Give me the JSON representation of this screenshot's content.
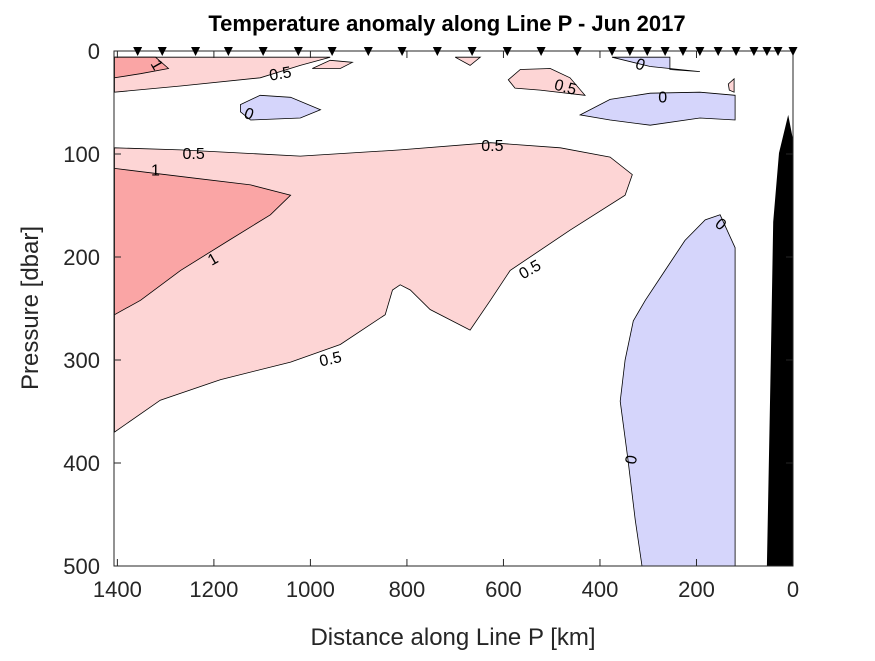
{
  "chart_data": {
    "type": "contour",
    "title": "Temperature anomaly along Line P - Jun 2017",
    "xlabel": "Distance along Line P [km]",
    "ylabel": "Pressure [dbar]",
    "xlim": [
      1407,
      0
    ],
    "ylim": [
      0,
      500
    ],
    "x_reversed": true,
    "y_reversed": true,
    "xticks": [
      1400,
      1200,
      1000,
      800,
      600,
      400,
      200,
      0
    ],
    "yticks": [
      0,
      100,
      200,
      300,
      400,
      500
    ],
    "colors": {
      "pos05": "#fdd5d5",
      "pos1": "#faa5a5",
      "neg": "#d5d5fb",
      "bathymetry": "#000000"
    },
    "stations_km": [
      1358,
      1307,
      1238,
      1170,
      1098,
      1025,
      955,
      880,
      810,
      737,
      665,
      592,
      522,
      447,
      375,
      338,
      302,
      265,
      228,
      193,
      155,
      118,
      81,
      54,
      31,
      0
    ],
    "regions": [
      {
        "level": "pos05",
        "points": [
          [
            1406,
            94
          ],
          [
            1269,
            96
          ],
          [
            1021,
            102
          ],
          [
            814,
            96
          ],
          [
            627,
            89
          ],
          [
            482,
            94
          ],
          [
            379,
            103
          ],
          [
            333,
            120
          ],
          [
            348,
            140
          ],
          [
            462,
            174
          ],
          [
            586,
            213
          ],
          [
            627,
            242
          ],
          [
            669,
            271
          ],
          [
            752,
            251
          ],
          [
            793,
            232
          ],
          [
            814,
            227
          ],
          [
            830,
            232
          ],
          [
            845,
            256
          ],
          [
            938,
            285
          ],
          [
            1041,
            302
          ],
          [
            1186,
            319
          ],
          [
            1311,
            339
          ],
          [
            1406,
            370
          ]
        ]
      },
      {
        "level": "pos1",
        "points": [
          [
            1406,
            114
          ],
          [
            1248,
            123
          ],
          [
            1124,
            130
          ],
          [
            1041,
            140
          ],
          [
            1083,
            159
          ],
          [
            1166,
            183
          ],
          [
            1269,
            213
          ],
          [
            1352,
            242
          ],
          [
            1406,
            256
          ]
        ]
      },
      {
        "level": "pos05",
        "points": [
          [
            1406,
            6
          ],
          [
            959,
            6
          ],
          [
            1021,
            14
          ],
          [
            1104,
            26
          ],
          [
            1269,
            34
          ],
          [
            1406,
            40
          ]
        ]
      },
      {
        "level": "pos1",
        "points": [
          [
            1406,
            6
          ],
          [
            1321,
            6
          ],
          [
            1294,
            17
          ],
          [
            1352,
            22
          ],
          [
            1406,
            26
          ]
        ]
      },
      {
        "level": "pos05",
        "points": [
          [
            996,
            17
          ],
          [
            959,
            9
          ],
          [
            913,
            11
          ],
          [
            938,
            17
          ]
        ]
      },
      {
        "level": "pos05",
        "points": [
          [
            700,
            6
          ],
          [
            648,
            6
          ],
          [
            669,
            14
          ]
        ]
      },
      {
        "level": "pos05",
        "points": [
          [
            590,
            28
          ],
          [
            565,
            18
          ],
          [
            503,
            17
          ],
          [
            462,
            26
          ],
          [
            431,
            43
          ],
          [
            524,
            38
          ],
          [
            576,
            36
          ]
        ]
      },
      {
        "level": "pos05",
        "points": [
          [
            122,
            27
          ],
          [
            134,
            32
          ],
          [
            132,
            38
          ],
          [
            122,
            40
          ]
        ]
      },
      {
        "level": "neg",
        "points": [
          [
            1145,
            52
          ],
          [
            1104,
            43
          ],
          [
            1041,
            45
          ],
          [
            979,
            57
          ],
          [
            1021,
            65
          ],
          [
            1124,
            67
          ],
          [
            1145,
            59
          ]
        ]
      },
      {
        "level": "neg",
        "points": [
          [
            375,
            6
          ],
          [
            255,
            6
          ],
          [
            255,
            18
          ],
          [
            193,
            20
          ],
          [
            296,
            15
          ]
        ]
      },
      {
        "level": "neg",
        "points": [
          [
            441,
            62
          ],
          [
            379,
            47
          ],
          [
            296,
            41
          ],
          [
            193,
            40
          ],
          [
            120,
            43
          ],
          [
            120,
            67
          ],
          [
            193,
            65
          ],
          [
            296,
            72
          ],
          [
            379,
            67
          ]
        ]
      },
      {
        "level": "neg",
        "points": [
          [
            120,
            191
          ],
          [
            151,
            159
          ],
          [
            182,
            164
          ],
          [
            224,
            184
          ],
          [
            265,
            213
          ],
          [
            306,
            242
          ],
          [
            331,
            262
          ],
          [
            348,
            300
          ],
          [
            358,
            340
          ],
          [
            342,
            397
          ],
          [
            327,
            455
          ],
          [
            313,
            500
          ],
          [
            120,
            500
          ]
        ]
      }
    ],
    "bathymetry": [
      [
        54,
        500
      ],
      [
        46,
        300
      ],
      [
        41,
        166
      ],
      [
        29,
        99
      ],
      [
        10,
        62
      ],
      [
        0,
        86
      ],
      [
        0,
        500
      ]
    ],
    "contour_labels": [
      {
        "text": "1",
        "km": 1320,
        "dbar": 14,
        "rot": 60
      },
      {
        "text": "0.5",
        "km": 1062,
        "dbar": 23,
        "rot": -10
      },
      {
        "text": "0.5",
        "km": 472,
        "dbar": 36,
        "rot": 15
      },
      {
        "text": "0",
        "km": 317,
        "dbar": 14,
        "rot": 20
      },
      {
        "text": "0",
        "km": 270,
        "dbar": 46,
        "rot": 0
      },
      {
        "text": "0",
        "km": 1128,
        "dbar": 62,
        "rot": 20
      },
      {
        "text": "0.5",
        "km": 1242,
        "dbar": 101,
        "rot": 0
      },
      {
        "text": "1",
        "km": 1321,
        "dbar": 117,
        "rot": 0
      },
      {
        "text": "0.5",
        "km": 623,
        "dbar": 93,
        "rot": 0
      },
      {
        "text": "1",
        "km": 1201,
        "dbar": 203,
        "rot": -30
      },
      {
        "text": "0.5",
        "km": 544,
        "dbar": 213,
        "rot": -30
      },
      {
        "text": "0.5",
        "km": 958,
        "dbar": 300,
        "rot": -12
      },
      {
        "text": "0",
        "km": 151,
        "dbar": 169,
        "rot": 40
      },
      {
        "text": "0",
        "km": 333,
        "dbar": 397,
        "rot": -80
      }
    ]
  }
}
